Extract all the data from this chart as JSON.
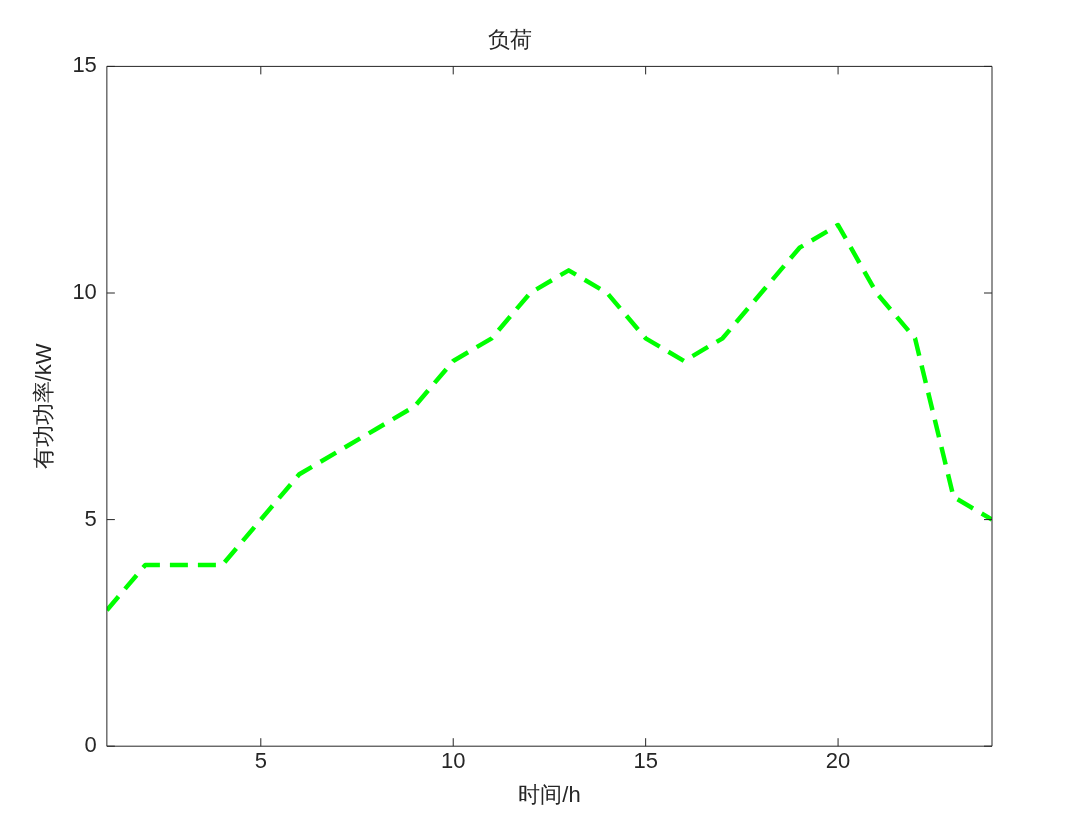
{
  "chart_data": {
    "type": "line",
    "title": "负荷",
    "xlabel": "时间/h",
    "ylabel": "有功功率/kW",
    "x": [
      1,
      2,
      3,
      4,
      5,
      6,
      7,
      8,
      9,
      10,
      11,
      12,
      13,
      14,
      15,
      16,
      17,
      18,
      19,
      20,
      21,
      22,
      23,
      24
    ],
    "series": [
      {
        "color": "#00ff00",
        "values": [
          3,
          4,
          4,
          4,
          5,
          6,
          6.5,
          7,
          7.5,
          8.5,
          9,
          10,
          10.5,
          10,
          9,
          8.5,
          9,
          10,
          11,
          11.5,
          10,
          9,
          5.5,
          5
        ]
      }
    ],
    "xlim": [
      1,
      24
    ],
    "xticks": [
      5,
      10,
      15,
      20
    ],
    "ylim": [
      0,
      15
    ],
    "yticks": [
      0,
      5,
      10,
      15
    ],
    "grid": false,
    "legend": false,
    "marker": "none",
    "line_style": "dashed"
  }
}
